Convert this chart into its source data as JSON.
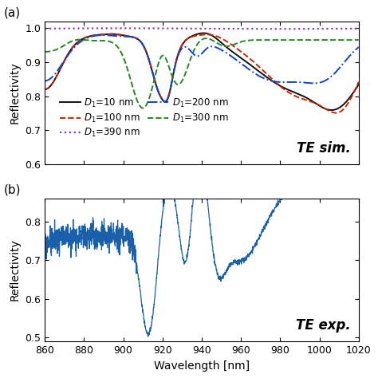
{
  "xlim": [
    860,
    1020
  ],
  "panel_a": {
    "ylim": [
      0.6,
      1.02
    ],
    "yticks": [
      0.6,
      0.7,
      0.8,
      0.9,
      1.0
    ],
    "ylabel": "Reflectivity",
    "annotation": "TE sim.",
    "legend": [
      {
        "label": "$D_1$=10 nm",
        "color": "#111111",
        "ls": "-",
        "lw": 1.4
      },
      {
        "label": "$D_1$=100 nm",
        "color": "#cc2200",
        "ls": "--",
        "lw": 1.4
      },
      {
        "label": "$D_1$=200 nm",
        "color": "#1144cc",
        "ls": "-.",
        "lw": 1.4
      },
      {
        "label": "$D_1$=300 nm",
        "color": "#228822",
        "ls": "--",
        "lw": 1.4
      },
      {
        "label": "$D_1$=390 nm",
        "color": "#9933bb",
        "ls": ":",
        "lw": 1.6
      }
    ]
  },
  "panel_b": {
    "ylim": [
      0.49,
      0.86
    ],
    "yticks": [
      0.5,
      0.6,
      0.7,
      0.8
    ],
    "ylabel": "Reflectivity",
    "xlabel": "Wavelength [nm]",
    "annotation": "TE exp.",
    "color": "#1a5faa"
  },
  "xticks": [
    860,
    880,
    900,
    920,
    940,
    960,
    980,
    1000,
    1020
  ],
  "panel_label_fontsize": 11,
  "axis_label_fontsize": 10,
  "tick_fontsize": 9,
  "legend_fontsize": 8.5
}
